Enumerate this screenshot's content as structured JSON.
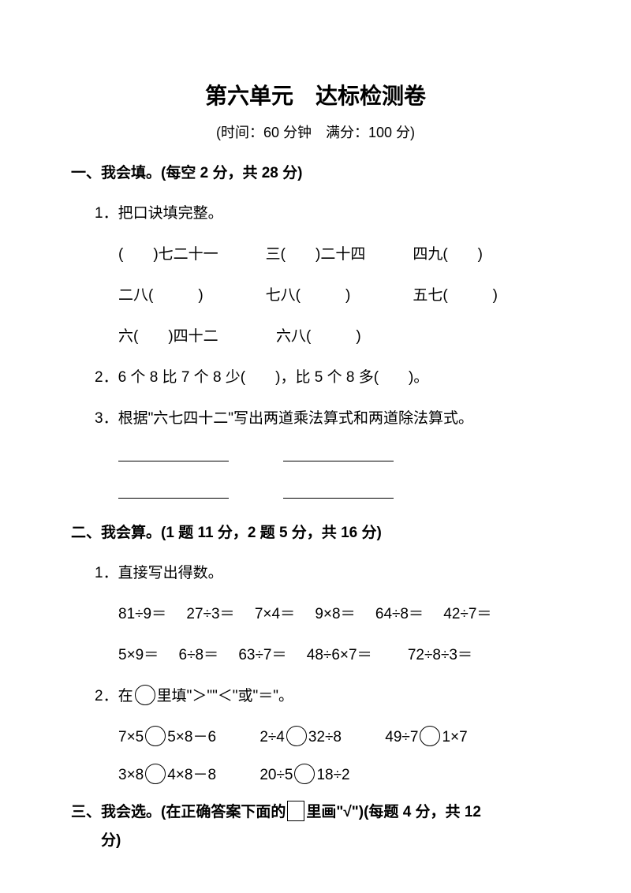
{
  "title": "第六单元　达标检测卷",
  "subtitle": "(时间：60 分钟　满分：100 分)",
  "section1": {
    "header": "一、我会填。(每空 2 分，共 28 分)",
    "q1": {
      "label": "1．把口诀填完整。",
      "row1": [
        "(　　)七二十一",
        "三(　　)二十四",
        "四九(　　)"
      ],
      "row2": [
        "二八(　　　)",
        "七八(　　　)",
        "五七(　　　)"
      ],
      "row3": [
        "六(　　)四十二",
        "六八(　　　)"
      ]
    },
    "q2": "2．6 个 8 比 7 个 8 少(　　)，比 5 个 8 多(　　)。",
    "q3": "3．根据\"六七四十二\"写出两道乘法算式和两道除法算式。"
  },
  "section2": {
    "header": "二、我会算。(1 题 11 分，2 题 5 分，共 16 分)",
    "q1": {
      "label": "1．直接写出得数。",
      "row1": [
        "81÷9＝",
        "27÷3＝",
        "7×4＝",
        "9×8＝",
        "64÷8＝",
        "42÷7＝"
      ],
      "row2": [
        "5×9＝",
        "6÷8＝",
        "63÷7＝",
        "48÷6×7＝",
        "72÷8÷3＝"
      ]
    },
    "q2": {
      "label_pre": "2．在",
      "label_post": "里填\"＞\"\"＜\"或\"＝\"。",
      "row1": [
        {
          "l": "7×5",
          "r": "5×8－6"
        },
        {
          "l": "2÷4",
          "r": "32÷8"
        },
        {
          "l": "49÷7",
          "r": "1×7"
        }
      ],
      "row2": [
        {
          "l": "3×8",
          "r": "4×8－8"
        },
        {
          "l": "20÷5",
          "r": "18÷2"
        }
      ]
    }
  },
  "section3": {
    "header_pre": "三、我会选。(在正确答案下面的",
    "header_post": "里画\"√\")(每题 4 分，共 12",
    "header_cont": "分)"
  }
}
